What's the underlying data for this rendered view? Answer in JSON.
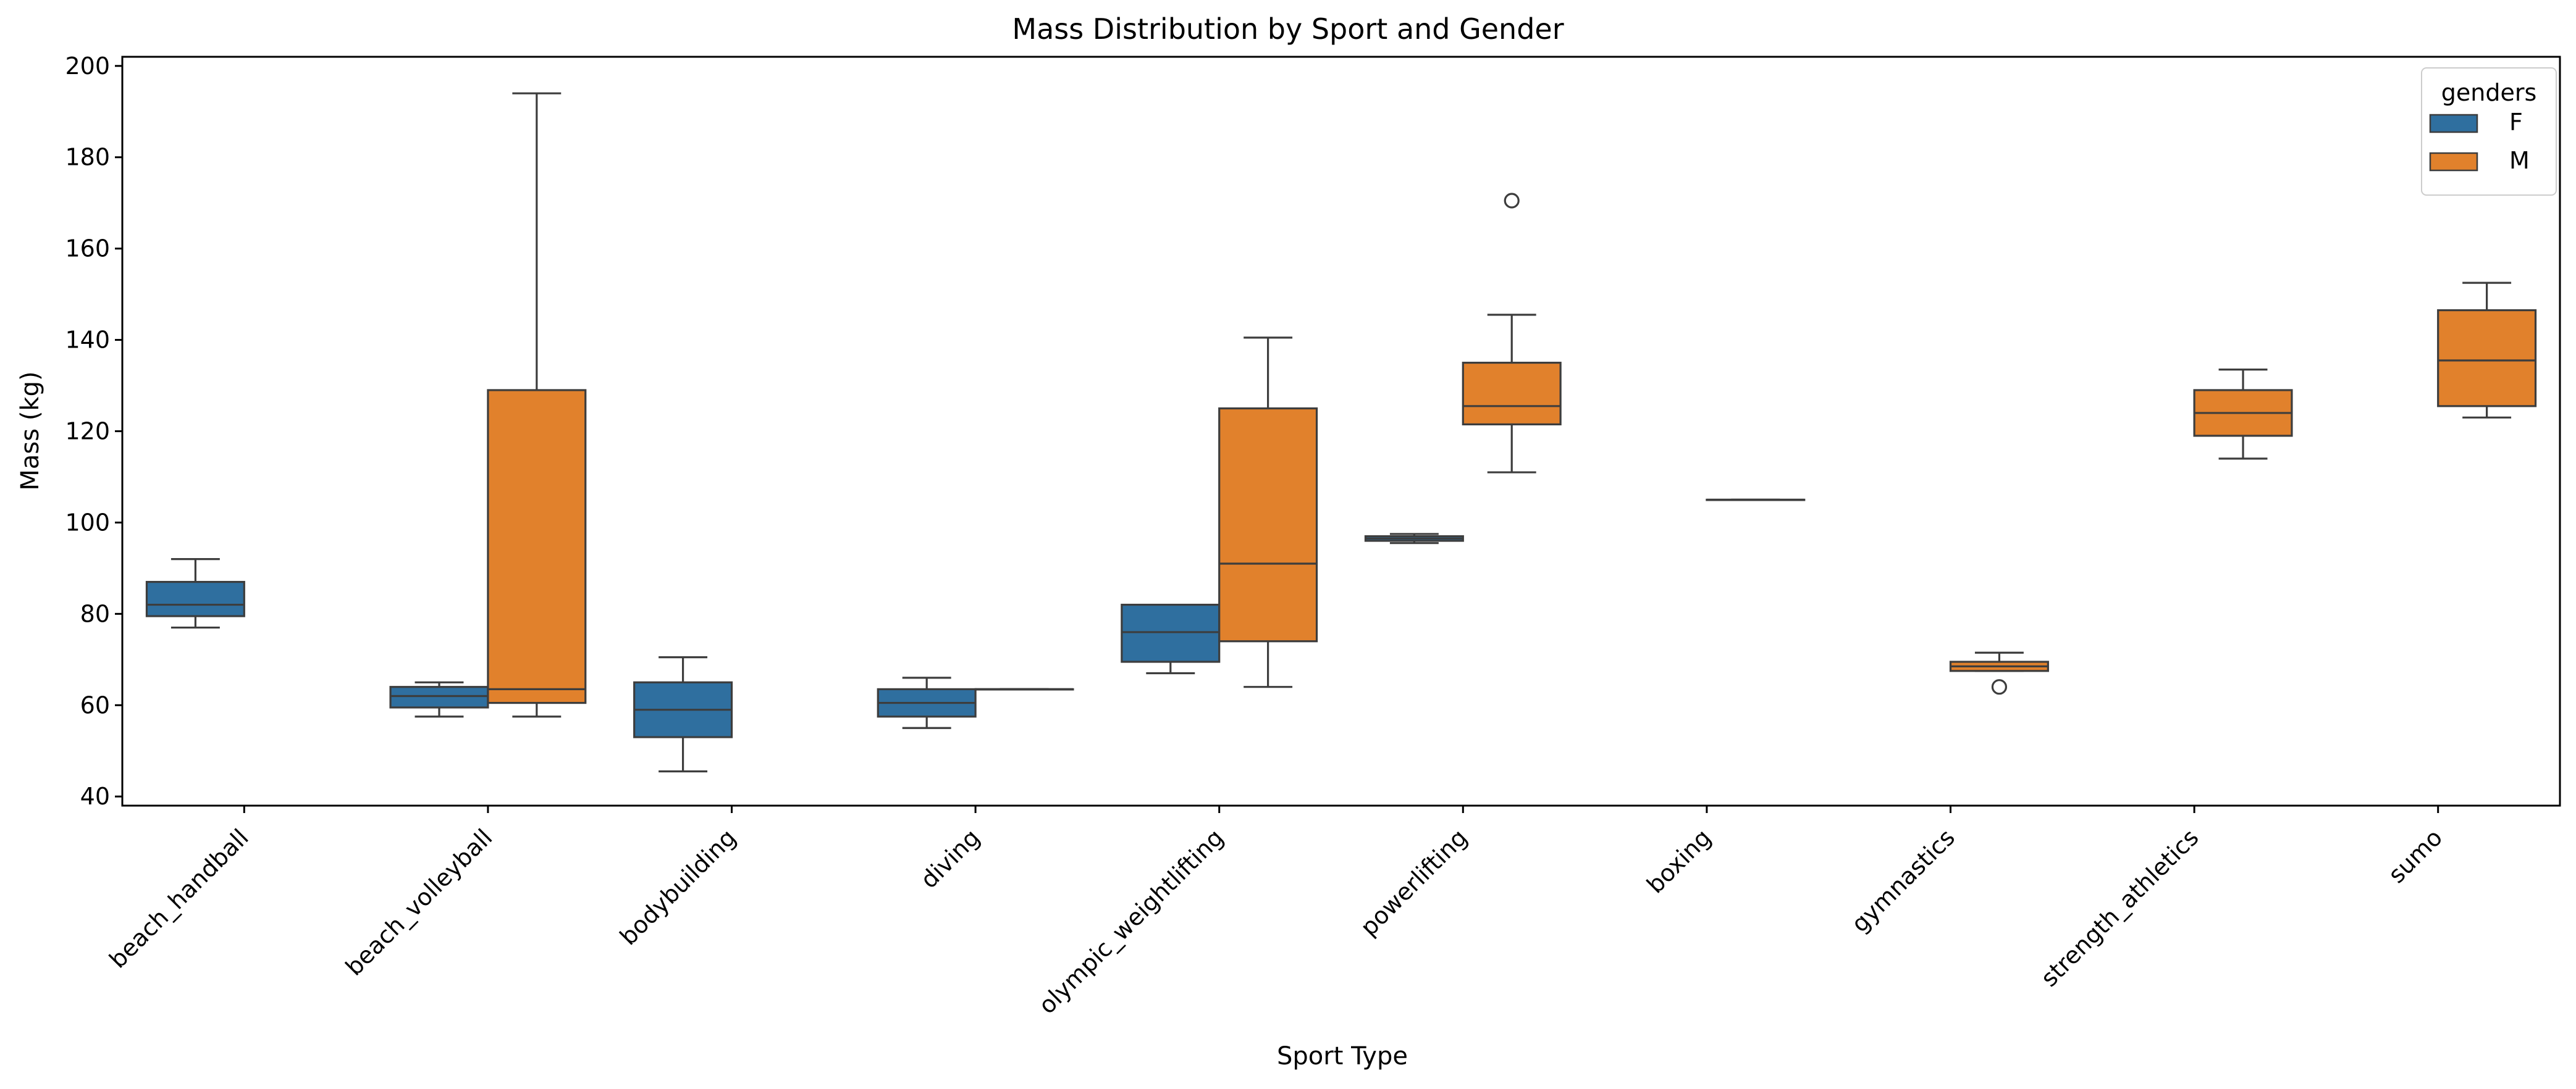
{
  "chart_data": {
    "type": "box",
    "title": "Mass Distribution by Sport and Gender",
    "xlabel": "Sport Type",
    "ylabel": "Mass (kg)",
    "ylim": [
      38,
      202
    ],
    "yticks": [
      40,
      60,
      80,
      100,
      120,
      140,
      160,
      180,
      200
    ],
    "categories": [
      "beach_handball",
      "beach_volleyball",
      "bodybuilding",
      "diving",
      "olympic_weightlifting",
      "powerlifting",
      "boxing",
      "gymnastics",
      "strength_athletics",
      "sumo"
    ],
    "legend": {
      "title": "genders",
      "position": "top-right"
    },
    "series": [
      {
        "name": "F",
        "color": "#2f6f9f",
        "boxes": [
          {
            "category": "beach_handball",
            "whislo": 77,
            "q1": 79.5,
            "med": 82,
            "q3": 87,
            "whishi": 92,
            "fliers": []
          },
          {
            "category": "beach_volleyball",
            "whislo": 57.5,
            "q1": 59.5,
            "med": 62,
            "q3": 64,
            "whishi": 65,
            "fliers": []
          },
          {
            "category": "bodybuilding",
            "whislo": 45.5,
            "q1": 53,
            "med": 59,
            "q3": 65,
            "whishi": 70.5,
            "fliers": []
          },
          {
            "category": "diving",
            "whislo": 55,
            "q1": 57.5,
            "med": 60.5,
            "q3": 63.5,
            "whishi": 66,
            "fliers": []
          },
          {
            "category": "olympic_weightlifting",
            "whislo": 67,
            "q1": 69.5,
            "med": 76,
            "q3": 82,
            "whishi": 82,
            "fliers": []
          },
          {
            "category": "powerlifting",
            "whislo": 95.5,
            "q1": 96,
            "med": 96.5,
            "q3": 97,
            "whishi": 97.5,
            "fliers": []
          }
        ]
      },
      {
        "name": "M",
        "color": "#e1812c",
        "boxes": [
          {
            "category": "beach_volleyball",
            "whislo": 57.5,
            "q1": 60.5,
            "med": 63.5,
            "q3": 129,
            "whishi": 194,
            "fliers": []
          },
          {
            "category": "diving",
            "whislo": 63.5,
            "q1": 63.5,
            "med": 63.5,
            "q3": 63.5,
            "whishi": 63.5,
            "fliers": []
          },
          {
            "category": "olympic_weightlifting",
            "whislo": 64,
            "q1": 74,
            "med": 91,
            "q3": 125,
            "whishi": 140.5,
            "fliers": []
          },
          {
            "category": "powerlifting",
            "whislo": 111,
            "q1": 121.5,
            "med": 125.5,
            "q3": 135,
            "whishi": 145.5,
            "fliers": [
              170.5
            ]
          },
          {
            "category": "boxing",
            "whislo": 105,
            "q1": 105,
            "med": 105,
            "q3": 105,
            "whishi": 105,
            "fliers": []
          },
          {
            "category": "gymnastics",
            "whislo": 67.5,
            "q1": 67.5,
            "med": 68.5,
            "q3": 69.5,
            "whishi": 71.5,
            "fliers": [
              64
            ]
          },
          {
            "category": "strength_athletics",
            "whislo": 114,
            "q1": 119,
            "med": 124,
            "q3": 129,
            "whishi": 133.5,
            "fliers": []
          },
          {
            "category": "sumo",
            "whislo": 123,
            "q1": 125.5,
            "med": 135.5,
            "q3": 146.5,
            "whishi": 152.5,
            "fliers": []
          }
        ]
      }
    ]
  }
}
